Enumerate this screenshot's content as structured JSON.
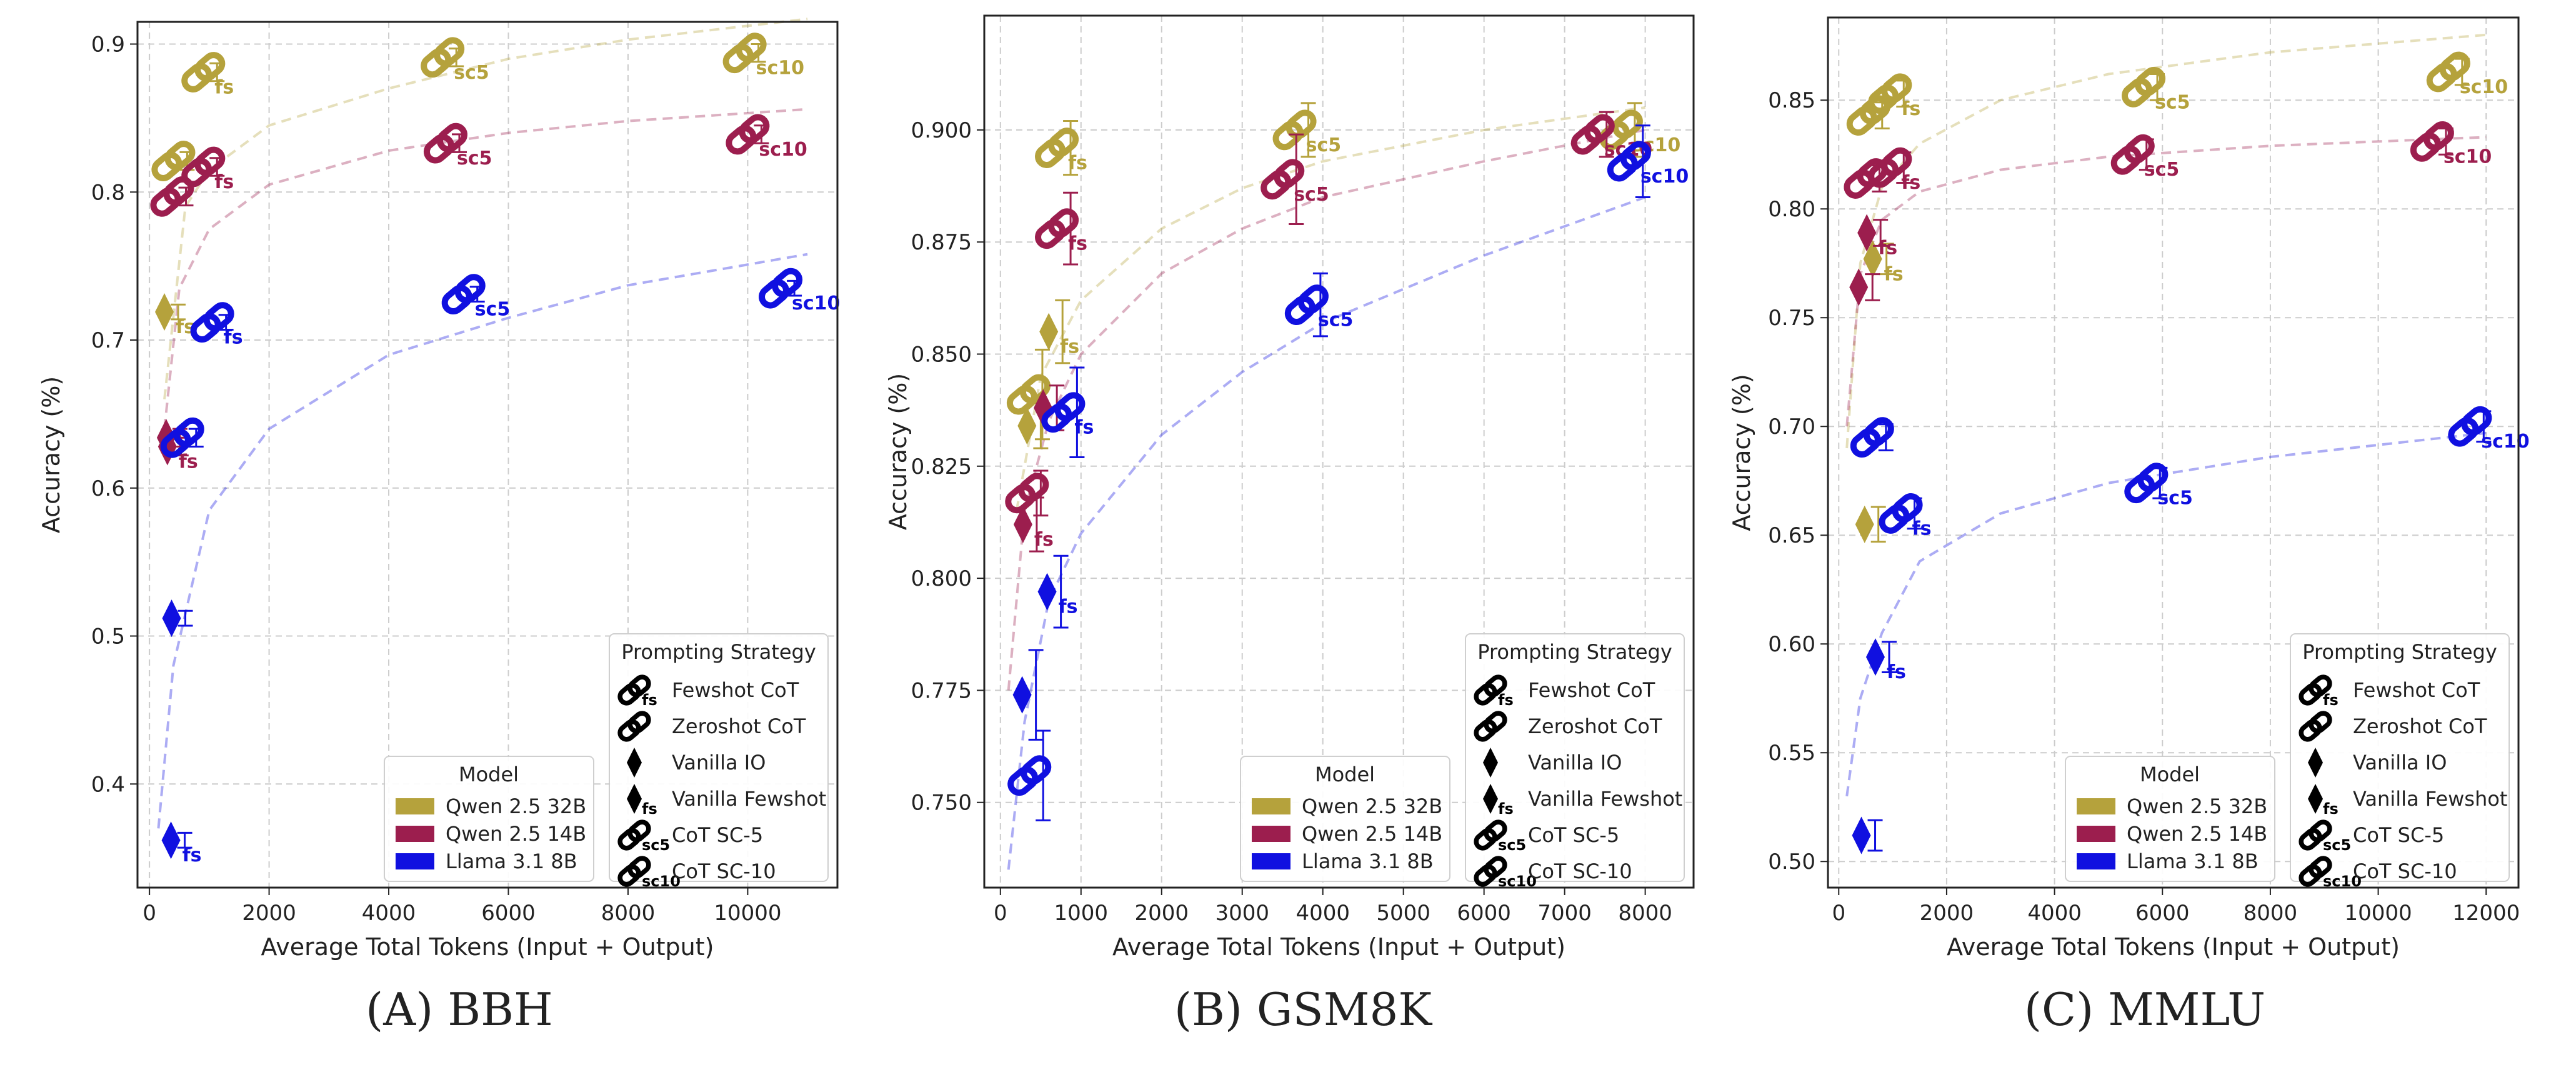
{
  "colors": {
    "Qwen 2.5 32B": "#B5A23C",
    "Qwen 2.5 14B": "#9C1E4E",
    "Llama 3.1 8B": "#1010E0",
    "grid": "#cccccc",
    "axis": "#222222"
  },
  "legend_text": {
    "model_title": "Model",
    "strategy_title": "Prompting Strategy",
    "models": [
      "Qwen 2.5 32B",
      "Qwen 2.5 14B",
      "Llama 3.1 8B"
    ],
    "strategies": [
      {
        "marker": "link",
        "sub": "fs",
        "label": "Fewshot CoT"
      },
      {
        "marker": "link",
        "sub": "",
        "label": "Zeroshot CoT"
      },
      {
        "marker": "diamond",
        "sub": "",
        "label": "Vanilla IO"
      },
      {
        "marker": "diamond",
        "sub": "fs",
        "label": "Vanilla Fewshot"
      },
      {
        "marker": "link",
        "sub": "sc5",
        "label": "CoT SC-5"
      },
      {
        "marker": "link",
        "sub": "sc10",
        "label": "CoT SC-10"
      }
    ]
  },
  "chart_data": [
    {
      "type": "scatter",
      "title": "(A) BBH",
      "xlabel": "Average Total Tokens (Input + Output)",
      "ylabel": "Accuracy (%)",
      "xlim": [
        -200,
        11500
      ],
      "ylim": [
        0.33,
        0.915
      ],
      "xticks": [
        0,
        2000,
        4000,
        6000,
        8000,
        10000
      ],
      "yticks": [
        0.4,
        0.5,
        0.6,
        0.7,
        0.8,
        0.9
      ],
      "ytick_labels": [
        "0.4",
        "0.5",
        "0.6",
        "0.7",
        "0.8",
        "0.9"
      ],
      "legend_position": "lower-right",
      "trends": [
        {
          "model": "Qwen 2.5 32B",
          "points": [
            [
              250,
              0.66
            ],
            [
              600,
              0.79
            ],
            [
              1000,
              0.815
            ],
            [
              2000,
              0.845
            ],
            [
              4000,
              0.87
            ],
            [
              6000,
              0.89
            ],
            [
              8000,
              0.903
            ],
            [
              11000,
              0.917
            ]
          ]
        },
        {
          "model": "Qwen 2.5 14B",
          "points": [
            [
              250,
              0.64
            ],
            [
              500,
              0.735
            ],
            [
              1000,
              0.775
            ],
            [
              2000,
              0.805
            ],
            [
              4000,
              0.828
            ],
            [
              6000,
              0.84
            ],
            [
              8000,
              0.848
            ],
            [
              11000,
              0.856
            ]
          ]
        },
        {
          "model": "Llama 3.1 8B",
          "points": [
            [
              150,
              0.37
            ],
            [
              400,
              0.48
            ],
            [
              1000,
              0.585
            ],
            [
              2000,
              0.64
            ],
            [
              4000,
              0.69
            ],
            [
              6000,
              0.715
            ],
            [
              8000,
              0.737
            ],
            [
              11000,
              0.758
            ]
          ]
        }
      ],
      "points": [
        {
          "model": "Qwen 2.5 32B",
          "marker": "link",
          "sub": "fs",
          "x": 900,
          "y": 0.881,
          "err": 0.006
        },
        {
          "model": "Qwen 2.5 32B",
          "marker": "link",
          "sub": "",
          "x": 400,
          "y": 0.821,
          "err": 0.006
        },
        {
          "model": "Qwen 2.5 32B",
          "marker": "diamond",
          "sub": "fs",
          "x": 250,
          "y": 0.719,
          "err": 0.005
        },
        {
          "model": "Qwen 2.5 32B",
          "marker": "link",
          "sub": "sc5",
          "x": 4900,
          "y": 0.891,
          "err": 0.006
        },
        {
          "model": "Qwen 2.5 32B",
          "marker": "link",
          "sub": "sc10",
          "x": 9950,
          "y": 0.894,
          "err": 0.006
        },
        {
          "model": "Qwen 2.5 14B",
          "marker": "link",
          "sub": "fs",
          "x": 900,
          "y": 0.817,
          "err": 0.006
        },
        {
          "model": "Qwen 2.5 14B",
          "marker": "link",
          "sub": "",
          "x": 380,
          "y": 0.797,
          "err": 0.006
        },
        {
          "model": "Qwen 2.5 14B",
          "marker": "diamond",
          "sub": "",
          "x": 280,
          "y": 0.634,
          "err": 0.006
        },
        {
          "model": "Qwen 2.5 14B",
          "marker": "diamond",
          "sub": "fs",
          "x": 300,
          "y": 0.628,
          "err": 0.006
        },
        {
          "model": "Qwen 2.5 14B",
          "marker": "link",
          "sub": "sc5",
          "x": 4950,
          "y": 0.833,
          "err": 0.006
        },
        {
          "model": "Qwen 2.5 14B",
          "marker": "link",
          "sub": "sc10",
          "x": 10000,
          "y": 0.839,
          "err": 0.006
        },
        {
          "model": "Llama 3.1 8B",
          "marker": "link",
          "sub": "fs",
          "x": 1050,
          "y": 0.712,
          "err": 0.005
        },
        {
          "model": "Llama 3.1 8B",
          "marker": "link",
          "sub": "",
          "x": 550,
          "y": 0.634,
          "err": 0.006
        },
        {
          "model": "Llama 3.1 8B",
          "marker": "diamond",
          "sub": "",
          "x": 370,
          "y": 0.512,
          "err": 0.005
        },
        {
          "model": "Llama 3.1 8B",
          "marker": "diamond",
          "sub": "fs",
          "x": 360,
          "y": 0.362,
          "err": 0.005
        },
        {
          "model": "Llama 3.1 8B",
          "marker": "link",
          "sub": "sc5",
          "x": 5250,
          "y": 0.731,
          "err": 0.005
        },
        {
          "model": "Llama 3.1 8B",
          "marker": "link",
          "sub": "sc10",
          "x": 10550,
          "y": 0.735,
          "err": 0.005
        }
      ]
    },
    {
      "type": "scatter",
      "title": "(B) GSM8K",
      "xlabel": "Average Total Tokens (Input + Output)",
      "ylabel": "Accuracy (%)",
      "xlim": [
        -200,
        8600
      ],
      "ylim": [
        0.731,
        0.9255
      ],
      "xticks": [
        0,
        1000,
        2000,
        3000,
        4000,
        5000,
        6000,
        7000,
        8000
      ],
      "yticks": [
        0.75,
        0.775,
        0.8,
        0.825,
        0.85,
        0.875,
        0.9
      ],
      "ytick_labels": [
        "0.750",
        "0.775",
        "0.800",
        "0.825",
        "0.850",
        "0.875",
        "0.900"
      ],
      "legend_position": "lower-right",
      "trends": [
        {
          "model": "Qwen 2.5 32B",
          "points": [
            [
              200,
              0.815
            ],
            [
              500,
              0.845
            ],
            [
              1000,
              0.862
            ],
            [
              2000,
              0.878
            ],
            [
              3000,
              0.887
            ],
            [
              4000,
              0.893
            ],
            [
              6000,
              0.9
            ],
            [
              8000,
              0.905
            ]
          ]
        },
        {
          "model": "Qwen 2.5 14B",
          "points": [
            [
              100,
              0.775
            ],
            [
              300,
              0.815
            ],
            [
              600,
              0.835
            ],
            [
              1000,
              0.85
            ],
            [
              2000,
              0.868
            ],
            [
              3000,
              0.878
            ],
            [
              4000,
              0.885
            ],
            [
              6000,
              0.893
            ],
            [
              8000,
              0.9
            ]
          ]
        },
        {
          "model": "Llama 3.1 8B",
          "points": [
            [
              100,
              0.735
            ],
            [
              300,
              0.768
            ],
            [
              600,
              0.795
            ],
            [
              1000,
              0.81
            ],
            [
              2000,
              0.832
            ],
            [
              3000,
              0.846
            ],
            [
              4000,
              0.857
            ],
            [
              6000,
              0.872
            ],
            [
              8000,
              0.885
            ]
          ]
        }
      ],
      "points": [
        {
          "model": "Qwen 2.5 32B",
          "marker": "link",
          "sub": "fs",
          "x": 700,
          "y": 0.896,
          "err": 0.006
        },
        {
          "model": "Qwen 2.5 32B",
          "marker": "link",
          "sub": "",
          "x": 350,
          "y": 0.841,
          "err": 0.01
        },
        {
          "model": "Qwen 2.5 32B",
          "marker": "diamond",
          "sub": "fs",
          "x": 600,
          "y": 0.855,
          "err": 0.007
        },
        {
          "model": "Qwen 2.5 32B",
          "marker": "diamond",
          "sub": "",
          "x": 330,
          "y": 0.834,
          "err": 0.005
        },
        {
          "model": "Qwen 2.5 32B",
          "marker": "link",
          "sub": "sc5",
          "x": 3650,
          "y": 0.9,
          "err": 0.006
        },
        {
          "model": "Qwen 2.5 32B",
          "marker": "link",
          "sub": "sc10",
          "x": 7700,
          "y": 0.9,
          "err": 0.006
        },
        {
          "model": "Qwen 2.5 14B",
          "marker": "link",
          "sub": "fs",
          "x": 700,
          "y": 0.878,
          "err": 0.008
        },
        {
          "model": "Qwen 2.5 14B",
          "marker": "link",
          "sub": "",
          "x": 330,
          "y": 0.819,
          "err": 0.005
        },
        {
          "model": "Qwen 2.5 14B",
          "marker": "diamond",
          "sub": "",
          "x": 530,
          "y": 0.838,
          "err": 0.005
        },
        {
          "model": "Qwen 2.5 14B",
          "marker": "diamond",
          "sub": "fs",
          "x": 280,
          "y": 0.812,
          "err": 0.006
        },
        {
          "model": "Qwen 2.5 14B",
          "marker": "link",
          "sub": "sc5",
          "x": 3500,
          "y": 0.889,
          "err": 0.01
        },
        {
          "model": "Qwen 2.5 14B",
          "marker": "link",
          "sub": "sc10",
          "x": 7350,
          "y": 0.899,
          "err": 0.005
        },
        {
          "model": "Llama 3.1 8B",
          "marker": "link",
          "sub": "fs",
          "x": 780,
          "y": 0.837,
          "err": 0.01
        },
        {
          "model": "Llama 3.1 8B",
          "marker": "link",
          "sub": "",
          "x": 360,
          "y": 0.756,
          "err": 0.01
        },
        {
          "model": "Llama 3.1 8B",
          "marker": "diamond",
          "sub": "",
          "x": 270,
          "y": 0.774,
          "err": 0.01
        },
        {
          "model": "Llama 3.1 8B",
          "marker": "diamond",
          "sub": "fs",
          "x": 580,
          "y": 0.797,
          "err": 0.008
        },
        {
          "model": "Llama 3.1 8B",
          "marker": "link",
          "sub": "sc5",
          "x": 3800,
          "y": 0.861,
          "err": 0.007
        },
        {
          "model": "Llama 3.1 8B",
          "marker": "link",
          "sub": "sc10",
          "x": 7800,
          "y": 0.893,
          "err": 0.008
        }
      ]
    },
    {
      "type": "scatter",
      "title": "(C) MMLU",
      "xlabel": "Average Total Tokens (Input + Output)",
      "ylabel": "Accuracy (%)",
      "xlim": [
        -200,
        12600
      ],
      "ylim": [
        0.488,
        0.888
      ],
      "xticks": [
        0,
        2000,
        4000,
        6000,
        8000,
        10000,
        12000
      ],
      "yticks": [
        0.5,
        0.55,
        0.6,
        0.65,
        0.7,
        0.75,
        0.8,
        0.85
      ],
      "ytick_labels": [
        "0.50",
        "0.55",
        "0.60",
        "0.65",
        "0.70",
        "0.75",
        "0.80",
        "0.85"
      ],
      "legend_position": "lower-right",
      "trends": [
        {
          "model": "Qwen 2.5 32B",
          "points": [
            [
              150,
              0.69
            ],
            [
              400,
              0.775
            ],
            [
              800,
              0.81
            ],
            [
              1500,
              0.83
            ],
            [
              3000,
              0.85
            ],
            [
              5000,
              0.862
            ],
            [
              8000,
              0.872
            ],
            [
              12000,
              0.88
            ]
          ]
        },
        {
          "model": "Qwen 2.5 14B",
          "points": [
            [
              150,
              0.7
            ],
            [
              400,
              0.77
            ],
            [
              800,
              0.795
            ],
            [
              1500,
              0.808
            ],
            [
              3000,
              0.818
            ],
            [
              5000,
              0.824
            ],
            [
              8000,
              0.829
            ],
            [
              12000,
              0.833
            ]
          ]
        },
        {
          "model": "Llama 3.1 8B",
          "points": [
            [
              150,
              0.53
            ],
            [
              400,
              0.575
            ],
            [
              800,
              0.605
            ],
            [
              1500,
              0.638
            ],
            [
              3000,
              0.66
            ],
            [
              5000,
              0.674
            ],
            [
              8000,
              0.686
            ],
            [
              12000,
              0.697
            ]
          ]
        }
      ],
      "points": [
        {
          "model": "Qwen 2.5 32B",
          "marker": "link",
          "sub": "fs",
          "x": 950,
          "y": 0.853,
          "err": 0.006
        },
        {
          "model": "Qwen 2.5 32B",
          "marker": "link",
          "sub": "",
          "x": 550,
          "y": 0.843,
          "err": 0.006
        },
        {
          "model": "Qwen 2.5 32B",
          "marker": "diamond",
          "sub": "",
          "x": 480,
          "y": 0.655,
          "err": 0.008
        },
        {
          "model": "Qwen 2.5 32B",
          "marker": "diamond",
          "sub": "fs",
          "x": 630,
          "y": 0.777,
          "err": 0.007
        },
        {
          "model": "Qwen 2.5 32B",
          "marker": "link",
          "sub": "sc5",
          "x": 5650,
          "y": 0.856,
          "err": 0.006
        },
        {
          "model": "Qwen 2.5 32B",
          "marker": "link",
          "sub": "sc10",
          "x": 11300,
          "y": 0.863,
          "err": 0.006
        },
        {
          "model": "Qwen 2.5 14B",
          "marker": "link",
          "sub": "fs",
          "x": 950,
          "y": 0.819,
          "err": 0.007
        },
        {
          "model": "Qwen 2.5 14B",
          "marker": "link",
          "sub": "",
          "x": 500,
          "y": 0.814,
          "err": 0.006
        },
        {
          "model": "Qwen 2.5 14B",
          "marker": "diamond",
          "sub": "fs",
          "x": 520,
          "y": 0.789,
          "err": 0.006
        },
        {
          "model": "Qwen 2.5 14B",
          "marker": "diamond",
          "sub": "",
          "x": 370,
          "y": 0.764,
          "err": 0.006
        },
        {
          "model": "Qwen 2.5 14B",
          "marker": "link",
          "sub": "sc5",
          "x": 5450,
          "y": 0.825,
          "err": 0.007
        },
        {
          "model": "Qwen 2.5 14B",
          "marker": "link",
          "sub": "sc10",
          "x": 11000,
          "y": 0.831,
          "err": 0.006
        },
        {
          "model": "Llama 3.1 8B",
          "marker": "link",
          "sub": "",
          "x": 620,
          "y": 0.695,
          "err": 0.006
        },
        {
          "model": "Llama 3.1 8B",
          "marker": "link",
          "sub": "fs",
          "x": 1150,
          "y": 0.66,
          "err": 0.007
        },
        {
          "model": "Llama 3.1 8B",
          "marker": "diamond",
          "sub": "fs",
          "x": 680,
          "y": 0.594,
          "err": 0.007
        },
        {
          "model": "Llama 3.1 8B",
          "marker": "diamond",
          "sub": "",
          "x": 420,
          "y": 0.512,
          "err": 0.007
        },
        {
          "model": "Llama 3.1 8B",
          "marker": "link",
          "sub": "sc5",
          "x": 5700,
          "y": 0.674,
          "err": 0.007
        },
        {
          "model": "Llama 3.1 8B",
          "marker": "link",
          "sub": "sc10",
          "x": 11700,
          "y": 0.7,
          "err": 0.007
        }
      ]
    }
  ]
}
